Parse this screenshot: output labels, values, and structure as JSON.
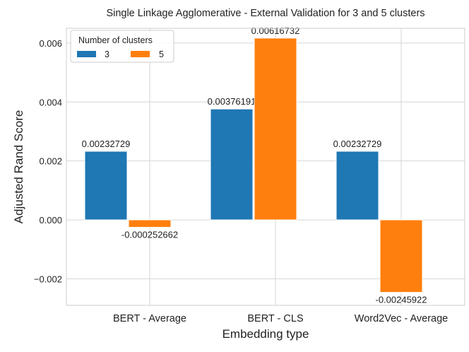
{
  "chart_data": {
    "type": "bar",
    "title": "Single Linkage Agglomerative - External Validation for 3 and 5 clusters",
    "xlabel": "Embedding type",
    "ylabel": "Adjusted Rand Score",
    "categories": [
      "BERT - Average",
      "BERT - CLS",
      "Word2Vec - Average"
    ],
    "series": [
      {
        "name": "3",
        "color": "#1f77b4",
        "values": [
          0.00232729,
          0.00376191,
          0.00232729
        ],
        "labels": [
          "0.00232729",
          "0.00376191",
          "0.00232729"
        ]
      },
      {
        "name": "5",
        "color": "#ff7f0e",
        "values": [
          -0.000252662,
          0.00616732,
          -0.00245922
        ],
        "labels": [
          "-0.000252662",
          "0.00616732",
          "-0.00245922"
        ]
      }
    ],
    "ylim": [
      -0.0029,
      0.0065
    ],
    "yticks": [
      -0.002,
      0.0,
      0.002,
      0.004,
      0.006
    ],
    "ytick_labels": [
      "−0.002",
      "0.000",
      "0.002",
      "0.004",
      "0.006"
    ],
    "grid": true,
    "legend": {
      "title": "Number of clusters",
      "placement": "top-left"
    }
  }
}
